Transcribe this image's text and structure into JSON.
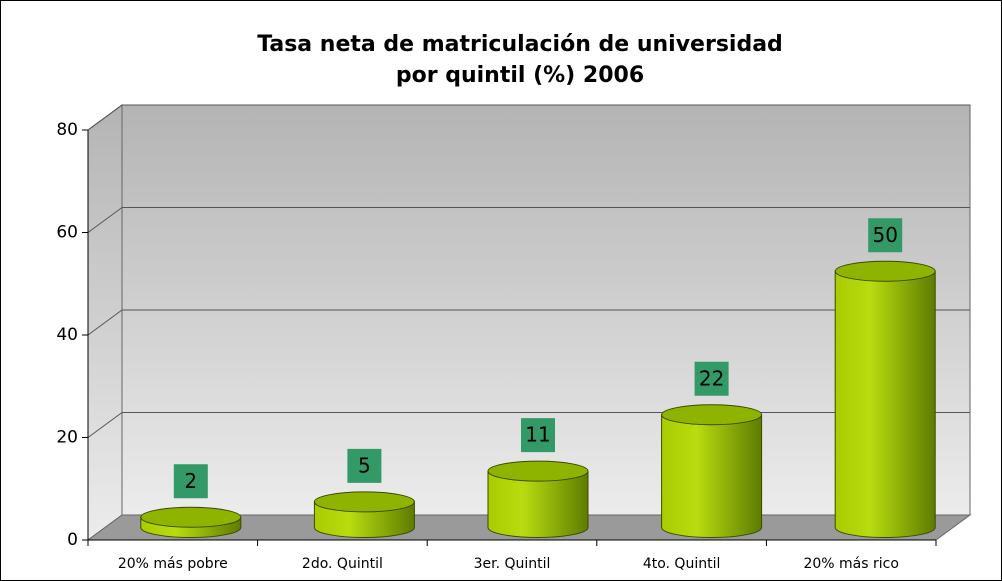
{
  "chart_data": {
    "type": "bar3d",
    "title": [
      "Tasa neta de matriculación de universidad",
      "por quintil (%) 2006"
    ],
    "categories": [
      "20% más pobre",
      "2do. Quintil",
      "3er. Quintil",
      "4to. Quintil",
      "20% más rico"
    ],
    "values": [
      2,
      5,
      11,
      22,
      50
    ],
    "color": "#99cc00",
    "label_color": "#339966",
    "ylim": [
      0,
      80
    ],
    "yticks": [
      0,
      20,
      40,
      60,
      80
    ],
    "grid": true
  }
}
